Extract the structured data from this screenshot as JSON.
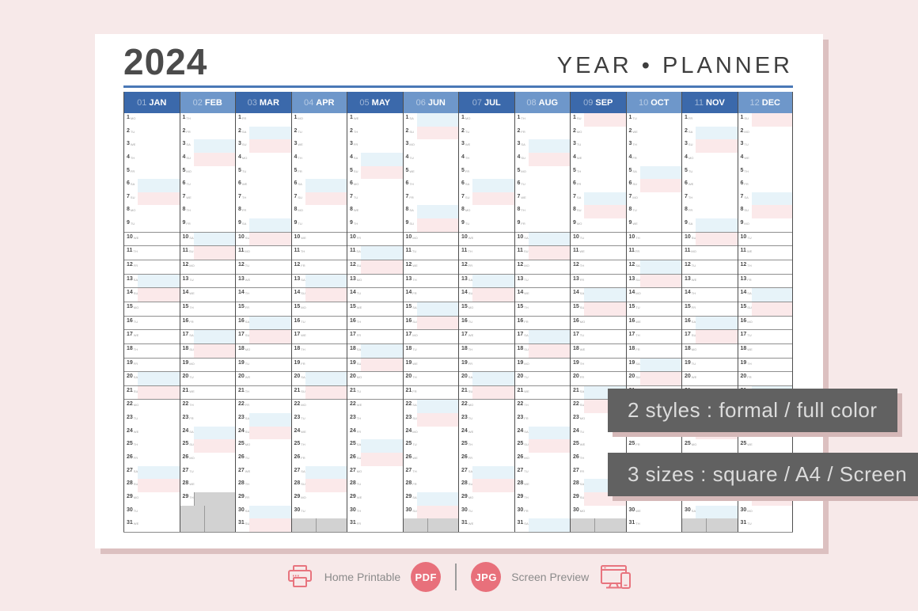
{
  "page": {
    "background": "#f7e9e9",
    "card_color": "#ffffff",
    "card_shadow": "#dcc0c0"
  },
  "header": {
    "year": "2024",
    "title": "YEAR • PLANNER",
    "rule_color": "#4a78b6"
  },
  "calendar": {
    "weekday_labels": [
      "MO",
      "TU",
      "WE",
      "TH",
      "FR",
      "SA",
      "SU"
    ],
    "colors": {
      "month_header_dark": "#3b69ab",
      "month_header_light": "#6e97ca",
      "saturday_highlight": "#e7f3f9",
      "sunday_highlight": "#fbe9ea",
      "disabled_gray": "#d2d2d2",
      "row_line": "#909090",
      "column_border": "#4f4f4f"
    },
    "lined_rows": {
      "from": 10,
      "to": 22
    },
    "months": [
      {
        "num": "01",
        "name": "JAN",
        "days": 31,
        "first_weekday": 1
      },
      {
        "num": "02",
        "name": "FEB",
        "days": 29,
        "first_weekday": 4,
        "gray_note_days": [
          29
        ]
      },
      {
        "num": "03",
        "name": "MAR",
        "days": 31,
        "first_weekday": 5
      },
      {
        "num": "04",
        "name": "APR",
        "days": 30,
        "first_weekday": 1
      },
      {
        "num": "05",
        "name": "MAY",
        "days": 31,
        "first_weekday": 3
      },
      {
        "num": "06",
        "name": "JUN",
        "days": 30,
        "first_weekday": 6
      },
      {
        "num": "07",
        "name": "JUL",
        "days": 31,
        "first_weekday": 1
      },
      {
        "num": "08",
        "name": "AUG",
        "days": 31,
        "first_weekday": 4
      },
      {
        "num": "09",
        "name": "SEP",
        "days": 30,
        "first_weekday": 7
      },
      {
        "num": "10",
        "name": "OCT",
        "days": 31,
        "first_weekday": 2
      },
      {
        "num": "11",
        "name": "NOV",
        "days": 30,
        "first_weekday": 5
      },
      {
        "num": "12",
        "name": "DEC",
        "days": 31,
        "first_weekday": 7
      }
    ]
  },
  "overlays": [
    {
      "text": "2 styles : formal / full color"
    },
    {
      "text": "3 sizes : square / A4 / Screen"
    }
  ],
  "footer": {
    "print_label": "Home Printable",
    "pdf_badge": "PDF",
    "jpg_badge": "JPG",
    "screen_label": "Screen Preview",
    "badge_color": "#e8707b",
    "icon_color": "#e8747e",
    "text_color": "#8b8b8b"
  }
}
